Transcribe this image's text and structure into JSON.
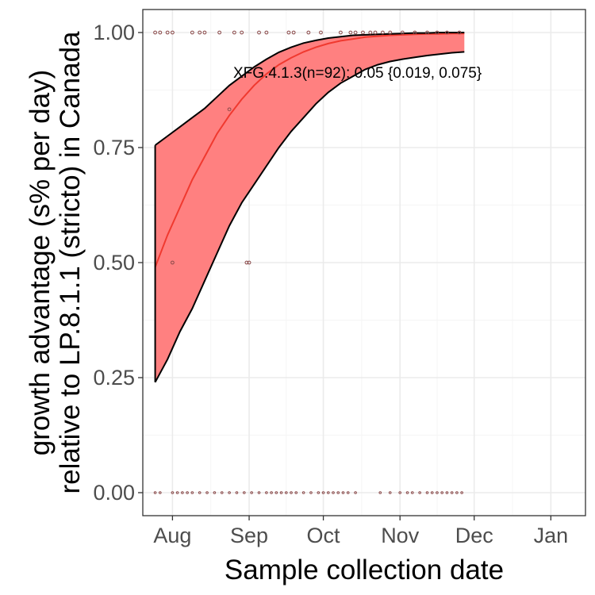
{
  "chart_data": {
    "type": "line",
    "xlabel": "Sample collection date",
    "ylabel_lines": [
      "growth advantage (s% per day)",
      "relative to LP.8.1.1 (stricto) in Canada"
    ],
    "x_ticks": [
      {
        "date": "2025-08-01",
        "label": "Aug"
      },
      {
        "date": "2025-09-01",
        "label": "Sep"
      },
      {
        "date": "2025-10-01",
        "label": "Oct"
      },
      {
        "date": "2025-11-01",
        "label": "Nov"
      },
      {
        "date": "2025-12-01",
        "label": "Dec"
      },
      {
        "date": "2026-01-01",
        "label": "Jan"
      }
    ],
    "y_ticks": [
      {
        "value": 0.0,
        "label": "0.00"
      },
      {
        "value": 0.25,
        "label": "0.25"
      },
      {
        "value": 0.5,
        "label": "0.50"
      },
      {
        "value": 0.75,
        "label": "0.75"
      },
      {
        "value": 1.0,
        "label": "1.00"
      }
    ],
    "xlim": [
      "2025-07-20",
      "2026-01-15"
    ],
    "ylim": [
      -0.05,
      1.05
    ],
    "grid": true,
    "annotation": "XFG.4.1.3(n=92): 0.05 {0.019, 0.075}",
    "series": [
      {
        "x": [
          "2025-07-25",
          "2025-07-30",
          "2025-08-04",
          "2025-08-09",
          "2025-08-14",
          "2025-08-19",
          "2025-08-24",
          "2025-08-29",
          "2025-09-03",
          "2025-09-08",
          "2025-09-13",
          "2025-09-18",
          "2025-09-23",
          "2025-09-28",
          "2025-10-03",
          "2025-10-08",
          "2025-10-13",
          "2025-10-18",
          "2025-10-23",
          "2025-10-28",
          "2025-11-02",
          "2025-11-07",
          "2025-11-12",
          "2025-11-17",
          "2025-11-22",
          "2025-11-27"
        ],
        "fit": [
          0.49,
          0.56,
          0.62,
          0.68,
          0.73,
          0.78,
          0.82,
          0.855,
          0.885,
          0.91,
          0.93,
          0.945,
          0.958,
          0.968,
          0.976,
          0.982,
          0.986,
          0.99,
          0.992,
          0.994,
          0.995,
          0.996,
          0.997,
          0.997,
          0.998,
          0.998
        ],
        "lower": [
          0.24,
          0.29,
          0.35,
          0.4,
          0.46,
          0.52,
          0.58,
          0.63,
          0.67,
          0.71,
          0.75,
          0.785,
          0.815,
          0.845,
          0.87,
          0.89,
          0.905,
          0.92,
          0.93,
          0.937,
          0.942,
          0.946,
          0.95,
          0.953,
          0.956,
          0.958
        ],
        "upper": [
          0.755,
          0.775,
          0.795,
          0.815,
          0.835,
          0.86,
          0.885,
          0.905,
          0.925,
          0.942,
          0.957,
          0.968,
          0.977,
          0.983,
          0.988,
          0.991,
          0.994,
          0.995,
          0.996,
          0.997,
          0.998,
          0.999,
          0.999,
          1.0,
          1.0,
          1.0
        ]
      }
    ],
    "points": [
      {
        "x": "2025-07-25",
        "y": 1
      },
      {
        "x": "2025-07-27",
        "y": 1
      },
      {
        "x": "2025-07-30",
        "y": 1
      },
      {
        "x": "2025-08-01",
        "y": 1
      },
      {
        "x": "2025-08-09",
        "y": 1
      },
      {
        "x": "2025-08-12",
        "y": 1
      },
      {
        "x": "2025-08-14",
        "y": 1
      },
      {
        "x": "2025-08-20",
        "y": 1
      },
      {
        "x": "2025-08-26",
        "y": 1
      },
      {
        "x": "2025-08-29",
        "y": 1
      },
      {
        "x": "2025-09-05",
        "y": 1
      },
      {
        "x": "2025-09-08",
        "y": 1
      },
      {
        "x": "2025-09-17",
        "y": 1
      },
      {
        "x": "2025-09-19",
        "y": 1
      },
      {
        "x": "2025-09-25",
        "y": 1
      },
      {
        "x": "2025-09-30",
        "y": 1
      },
      {
        "x": "2025-10-08",
        "y": 1
      },
      {
        "x": "2025-10-12",
        "y": 1
      },
      {
        "x": "2025-10-14",
        "y": 1
      },
      {
        "x": "2025-10-17",
        "y": 1
      },
      {
        "x": "2025-10-20",
        "y": 1
      },
      {
        "x": "2025-10-22",
        "y": 1
      },
      {
        "x": "2025-10-25",
        "y": 1
      },
      {
        "x": "2025-10-28",
        "y": 1
      },
      {
        "x": "2025-11-02",
        "y": 1
      },
      {
        "x": "2025-11-07",
        "y": 1
      },
      {
        "x": "2025-11-12",
        "y": 1
      },
      {
        "x": "2025-11-16",
        "y": 1
      },
      {
        "x": "2025-11-20",
        "y": 1
      },
      {
        "x": "2025-11-25",
        "y": 1
      },
      {
        "x": "2025-08-24",
        "y": 0.833
      },
      {
        "x": "2025-08-01",
        "y": 0.5
      },
      {
        "x": "2025-08-31",
        "y": 0.5
      },
      {
        "x": "2025-09-01",
        "y": 0.5
      },
      {
        "x": "2025-07-25",
        "y": 0
      },
      {
        "x": "2025-07-27",
        "y": 0
      },
      {
        "x": "2025-08-01",
        "y": 0
      },
      {
        "x": "2025-08-03",
        "y": 0
      },
      {
        "x": "2025-08-05",
        "y": 0
      },
      {
        "x": "2025-08-07",
        "y": 0
      },
      {
        "x": "2025-08-09",
        "y": 0
      },
      {
        "x": "2025-08-12",
        "y": 0
      },
      {
        "x": "2025-08-15",
        "y": 0
      },
      {
        "x": "2025-08-18",
        "y": 0
      },
      {
        "x": "2025-08-21",
        "y": 0
      },
      {
        "x": "2025-08-24",
        "y": 0
      },
      {
        "x": "2025-08-27",
        "y": 0
      },
      {
        "x": "2025-08-30",
        "y": 0
      },
      {
        "x": "2025-09-02",
        "y": 0
      },
      {
        "x": "2025-09-05",
        "y": 0
      },
      {
        "x": "2025-09-08",
        "y": 0
      },
      {
        "x": "2025-09-10",
        "y": 0
      },
      {
        "x": "2025-09-12",
        "y": 0
      },
      {
        "x": "2025-09-14",
        "y": 0
      },
      {
        "x": "2025-09-16",
        "y": 0
      },
      {
        "x": "2025-09-18",
        "y": 0
      },
      {
        "x": "2025-09-20",
        "y": 0
      },
      {
        "x": "2025-09-23",
        "y": 0
      },
      {
        "x": "2025-09-26",
        "y": 0
      },
      {
        "x": "2025-09-29",
        "y": 0
      },
      {
        "x": "2025-10-01",
        "y": 0
      },
      {
        "x": "2025-10-03",
        "y": 0
      },
      {
        "x": "2025-10-05",
        "y": 0
      },
      {
        "x": "2025-10-07",
        "y": 0
      },
      {
        "x": "2025-10-09",
        "y": 0
      },
      {
        "x": "2025-10-11",
        "y": 0
      },
      {
        "x": "2025-10-14",
        "y": 0
      },
      {
        "x": "2025-10-24",
        "y": 0
      },
      {
        "x": "2025-10-28",
        "y": 0
      },
      {
        "x": "2025-11-01",
        "y": 0
      },
      {
        "x": "2025-11-04",
        "y": 0
      },
      {
        "x": "2025-11-06",
        "y": 0
      },
      {
        "x": "2025-11-09",
        "y": 0
      },
      {
        "x": "2025-11-12",
        "y": 0
      },
      {
        "x": "2025-11-14",
        "y": 0
      },
      {
        "x": "2025-11-16",
        "y": 0
      },
      {
        "x": "2025-11-18",
        "y": 0
      },
      {
        "x": "2025-11-20",
        "y": 0
      },
      {
        "x": "2025-11-22",
        "y": 0
      },
      {
        "x": "2025-11-24",
        "y": 0
      },
      {
        "x": "2025-11-26",
        "y": 0
      }
    ],
    "colors": {
      "ribbon": "#ff8080",
      "fit": "#f0392f",
      "outline": "#000000",
      "point": "#8b4a4a",
      "grid_major": "#ebebeb",
      "grid_minor": "#f5f5f5",
      "frame": "#333333"
    }
  }
}
